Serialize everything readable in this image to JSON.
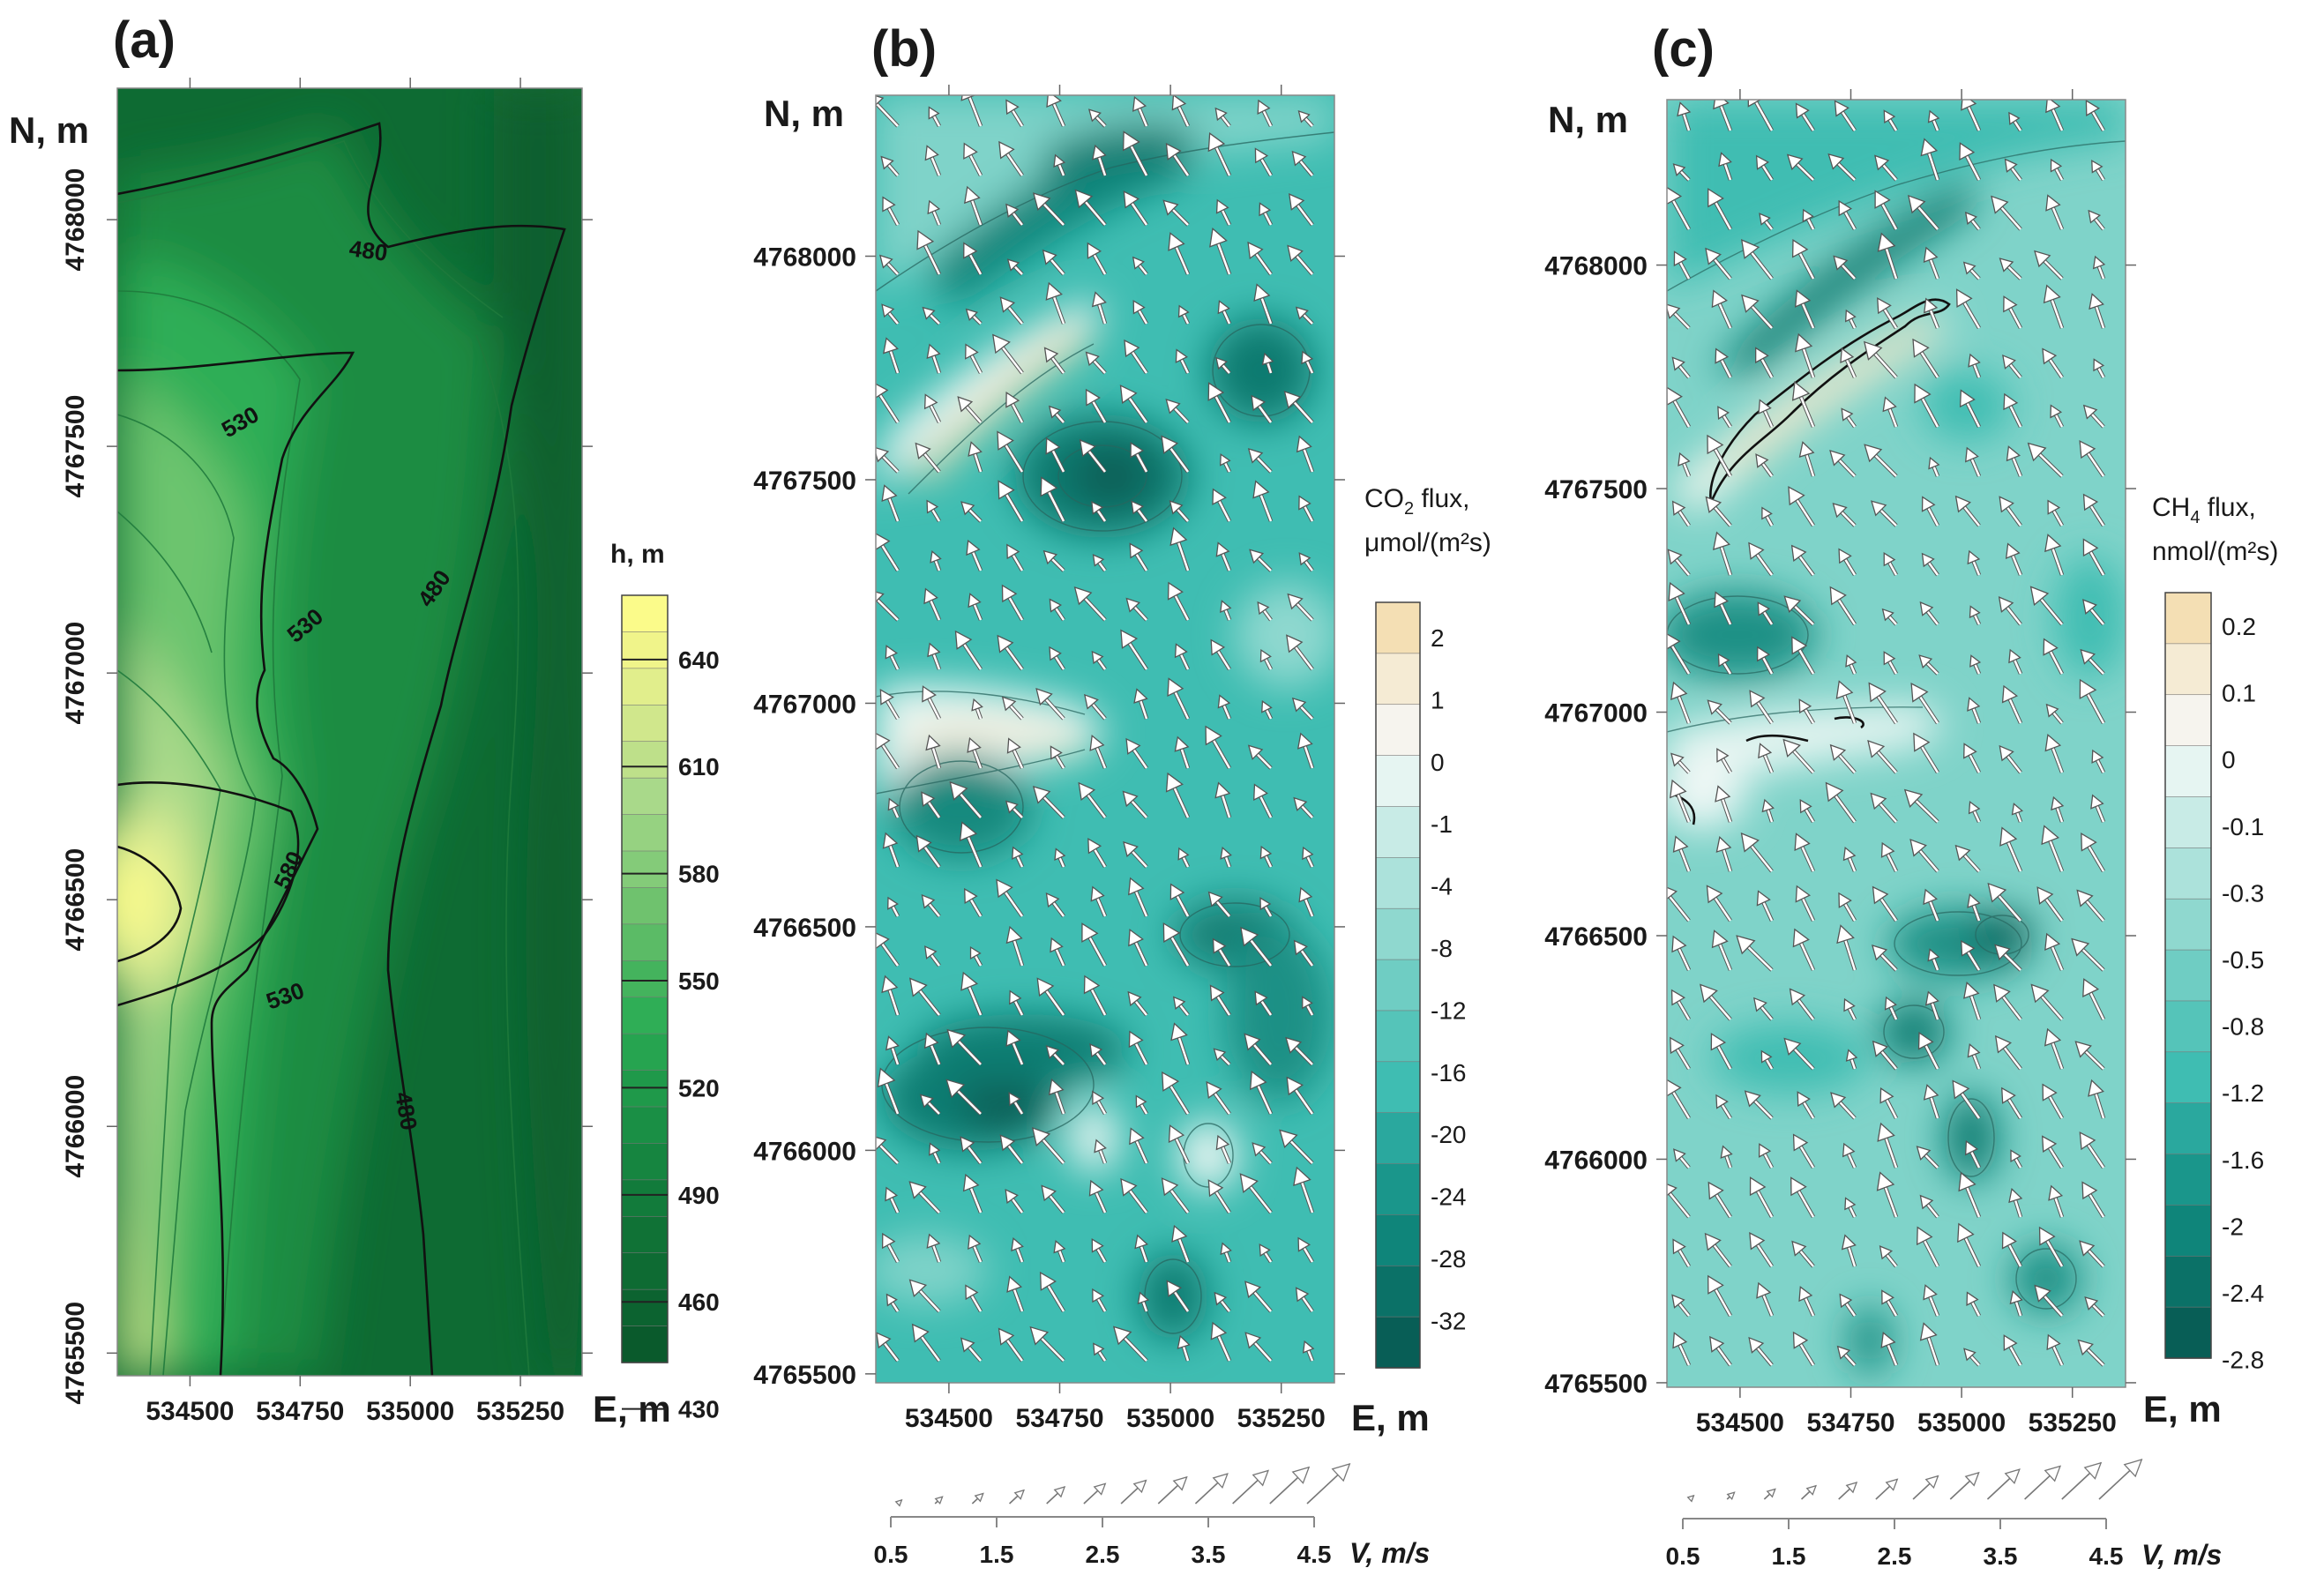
{
  "chart_data": [
    {
      "type": "heatmap",
      "panel_label": "(a)",
      "title": "",
      "xlabel": "E, m",
      "ylabel": "N, m",
      "x_ticks": [
        "534500",
        "534750",
        "535000",
        "535250"
      ],
      "y_ticks": [
        "4765500",
        "4766000",
        "4766500",
        "4767000",
        "4767500",
        "4768000"
      ],
      "xlim": [
        534335,
        535390
      ],
      "ylim": [
        4765450,
        4768290
      ],
      "colorbar": {
        "title": "h, m",
        "tick_labels": [
          "640",
          "610",
          "580",
          "550",
          "520",
          "490",
          "460",
          "430"
        ],
        "range": [
          430,
          660
        ]
      },
      "contour_labels": [
        "480",
        "530",
        "530",
        "480",
        "580",
        "530",
        "480"
      ]
    },
    {
      "type": "heatmap",
      "panel_label": "(b)",
      "title": "",
      "xlabel": "E, m",
      "ylabel": "N, m",
      "x_ticks": [
        "534500",
        "534750",
        "535000",
        "535250"
      ],
      "y_ticks": [
        "4768000",
        "4767500",
        "4767000",
        "4766500",
        "4766000",
        "4765500"
      ],
      "xlim": [
        534335,
        535370
      ],
      "ylim": [
        4765480,
        4768360
      ],
      "colorbar": {
        "title_line1": "CO",
        "title_sub": "2",
        "title_line1_rest": " flux,",
        "title_line2": "μmol/(m²s)",
        "tick_labels": [
          "2",
          "1",
          "0",
          "-1",
          "-4",
          "-8",
          "-12",
          "-16",
          "-20",
          "-24",
          "-28",
          "-32"
        ]
      },
      "vector_legend": {
        "label": "V, m/s",
        "tick_labels": [
          "0.5",
          "1.5",
          "2.5",
          "3.5",
          "4.5"
        ],
        "range": [
          0.5,
          4.5
        ]
      }
    },
    {
      "type": "heatmap",
      "panel_label": "(c)",
      "title": "",
      "xlabel": "E, m",
      "ylabel": "N, m",
      "x_ticks": [
        "534500",
        "534750",
        "535000",
        "535250"
      ],
      "y_ticks": [
        "4768000",
        "4767500",
        "4767000",
        "4766500",
        "4766000",
        "4765500"
      ],
      "xlim": [
        534335,
        535370
      ],
      "ylim": [
        4765490,
        4768370
      ],
      "colorbar": {
        "title_line1": "CH",
        "title_sub": "4",
        "title_line1_rest": " flux,",
        "title_line2": "nmol/(m²s)",
        "tick_labels": [
          "0.2",
          "0.1",
          "0",
          "-0.1",
          "-0.3",
          "-0.5",
          "-0.8",
          "-1.2",
          "-1.6",
          "-2",
          "-2.4",
          "-2.8"
        ]
      },
      "vector_legend": {
        "label": "V, m/s",
        "tick_labels": [
          "0.5",
          "1.5",
          "2.5",
          "3.5",
          "4.5"
        ],
        "range": [
          0.5,
          4.5
        ]
      }
    }
  ],
  "colors": {
    "green_dark": "#0e6b33",
    "green_mid": "#2fae56",
    "green_light": "#a9d98a",
    "yellow_top": "#fbfb8a",
    "teal_dark": "#0a7a6e",
    "teal_mid": "#3fbdb2",
    "teal_light": "#c8ebe6",
    "sand": "#f4dfb4"
  }
}
